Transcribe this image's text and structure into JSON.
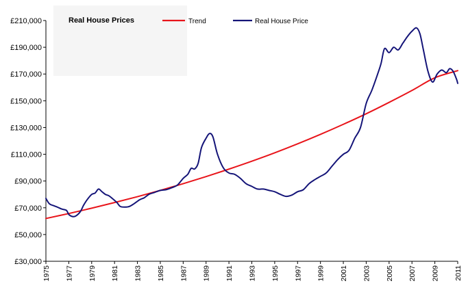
{
  "chart_data": {
    "type": "line",
    "title": "Real House Prices",
    "xlabel": "",
    "ylabel": "",
    "xlim": [
      1975,
      2011
    ],
    "ylim": [
      30000,
      210000
    ],
    "y_ticks": [
      30000,
      50000,
      70000,
      90000,
      110000,
      130000,
      150000,
      170000,
      190000,
      210000
    ],
    "y_tick_labels": [
      "£30,000",
      "£50,000",
      "£70,000",
      "£90,000",
      "£110,000",
      "£130,000",
      "£150,000",
      "£170,000",
      "£190,000",
      "£210,000"
    ],
    "x_ticks": [
      1975,
      1977,
      1979,
      1981,
      1983,
      1985,
      1987,
      1989,
      1991,
      1993,
      1995,
      1997,
      1999,
      2001,
      2003,
      2005,
      2007,
      2009,
      2011
    ],
    "x_tick_labels": [
      "1975",
      "1977",
      "1979",
      "1981",
      "1983",
      "1985",
      "1987",
      "1989",
      "1991",
      "1993",
      "1995",
      "1997",
      "1999",
      "2001",
      "2003",
      "2005",
      "2007",
      "2009",
      "2011"
    ],
    "grid": false,
    "legend_position": "top",
    "series": [
      {
        "name": "Trend",
        "color": "#e8141a",
        "x": [
          1975,
          1977,
          1979,
          1981,
          1983,
          1985,
          1987,
          1989,
          1991,
          1993,
          1995,
          1997,
          1999,
          2001,
          2003,
          2005,
          2007,
          2009,
          2011
        ],
        "y": [
          62000,
          65700,
          69700,
          73900,
          78300,
          83000,
          88000,
          93300,
          98900,
          104800,
          111100,
          117800,
          124900,
          132400,
          140300,
          148800,
          157700,
          167200,
          172500
        ]
      },
      {
        "name": "Real House Price",
        "color": "#141478",
        "x": [
          1975,
          1975.3,
          1975.7,
          1976,
          1976.4,
          1976.8,
          1977,
          1977.3,
          1977.6,
          1978,
          1978.3,
          1978.6,
          1979,
          1979.3,
          1979.6,
          1979.9,
          1980.2,
          1980.5,
          1980.8,
          1981.2,
          1981.5,
          1981.9,
          1982.3,
          1982.7,
          1983.2,
          1983.6,
          1984,
          1984.5,
          1985,
          1985.5,
          1986,
          1986.5,
          1987,
          1987.4,
          1987.7,
          1988,
          1988.3,
          1988.6,
          1989,
          1989.3,
          1989.6,
          1990,
          1990.5,
          1991,
          1991.5,
          1992,
          1992.5,
          1993,
          1993.5,
          1994,
          1994.5,
          1995,
          1995.5,
          1996,
          1996.5,
          1997,
          1997.5,
          1998,
          1998.5,
          1999,
          1999.5,
          2000,
          2000.5,
          2001,
          2001.5,
          2002,
          2002.5,
          2003,
          2003.5,
          2004,
          2004.3,
          2004.6,
          2005,
          2005.4,
          2005.8,
          2006.2,
          2006.6,
          2007,
          2007.4,
          2007.7,
          2008,
          2008.4,
          2008.8,
          2009.2,
          2009.6,
          2010,
          2010.3,
          2010.6,
          2010.9,
          2011
        ],
        "y": [
          77000,
          73000,
          71500,
          70500,
          69000,
          68000,
          65000,
          63500,
          63800,
          67000,
          72000,
          76000,
          80000,
          81000,
          84000,
          82000,
          80000,
          79000,
          77000,
          74000,
          71000,
          70500,
          71000,
          73000,
          76000,
          77500,
          80000,
          81500,
          83000,
          83500,
          85000,
          87000,
          92000,
          95000,
          99500,
          99000,
          103000,
          115000,
          122000,
          125500,
          123000,
          110000,
          100000,
          96000,
          95000,
          92000,
          88000,
          86000,
          84000,
          84000,
          83000,
          82000,
          80000,
          78500,
          79500,
          82000,
          83500,
          88000,
          91000,
          93500,
          96000,
          101000,
          106000,
          110000,
          113000,
          122000,
          130000,
          148000,
          158000,
          170000,
          178000,
          189000,
          186000,
          190000,
          188000,
          193000,
          198000,
          202000,
          204500,
          200000,
          188000,
          172000,
          164000,
          170000,
          173000,
          171000,
          174000,
          172000,
          166000,
          163000
        ]
      }
    ]
  }
}
